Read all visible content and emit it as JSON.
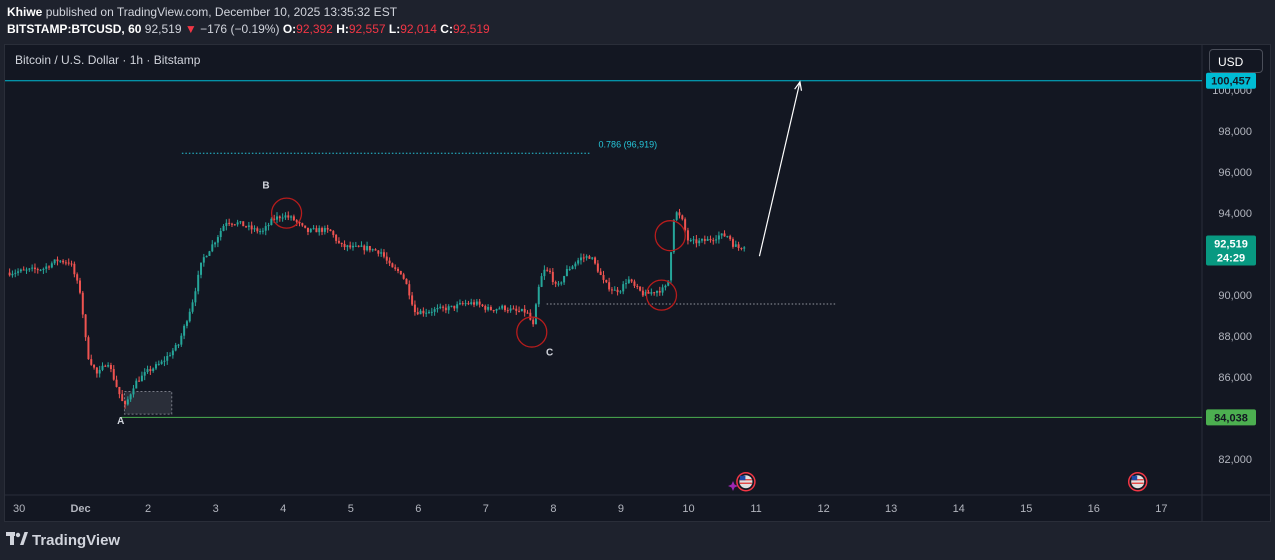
{
  "header": {
    "author": "Khiwe",
    "published_text": "published on TradingView.com, December 10, 2025 13:35:32 EST",
    "symbol": "BITSTAMP:BTCUSD, 60",
    "last": "92,519",
    "change_arrow": "▼",
    "change": "−176 (−0.19%)",
    "o_label": "O:",
    "o_value": "92,392",
    "h_label": "H:",
    "h_value": "92,557",
    "l_label": "L:",
    "l_value": "92,014",
    "c_label": "C:",
    "c_value": "92,519"
  },
  "chart_title": "Bitcoin / U.S. Dollar · 1h · Bitstamp",
  "currency_button": "USD",
  "footer": {
    "brand": "TradingView"
  },
  "colors": {
    "up": "#26a69a",
    "down": "#ef5350",
    "accent": "#00bcd4",
    "support": "#4caf50",
    "circle": "#b71c1c"
  },
  "chart_data": {
    "type": "candlestick",
    "title": "Bitcoin / U.S. Dollar · 1h · Bitstamp",
    "ylim": [
      80400,
      102200
    ],
    "y_ticks": [
      82000,
      84000,
      86000,
      88000,
      90000,
      92000,
      94000,
      96000,
      98000,
      100000
    ],
    "y_tick_labels": [
      "82,000",
      "84,000",
      "86,000",
      "88,000",
      "90,000",
      "92,000",
      "94,000",
      "96,000",
      "98,000",
      "100,000"
    ],
    "x_ticks": [
      {
        "day": 0,
        "label": "30"
      },
      {
        "day": 1,
        "label": "Dec"
      },
      {
        "day": 2,
        "label": "2"
      },
      {
        "day": 3,
        "label": "3"
      },
      {
        "day": 4,
        "label": "4"
      },
      {
        "day": 5,
        "label": "5"
      },
      {
        "day": 6,
        "label": "6"
      },
      {
        "day": 7,
        "label": "7"
      },
      {
        "day": 8,
        "label": "8"
      },
      {
        "day": 9,
        "label": "9"
      },
      {
        "day": 10,
        "label": "10"
      },
      {
        "day": 11,
        "label": "11"
      },
      {
        "day": 12,
        "label": "12"
      },
      {
        "day": 13,
        "label": "13"
      },
      {
        "day": 14,
        "label": "14"
      },
      {
        "day": 15,
        "label": "15"
      },
      {
        "day": 16,
        "label": "16"
      },
      {
        "day": 17,
        "label": "17"
      }
    ],
    "price_path": [
      [
        -0.05,
        91100
      ],
      [
        0.2,
        91200
      ],
      [
        0.45,
        91300
      ],
      [
        0.65,
        91700
      ],
      [
        0.85,
        91600
      ],
      [
        1.0,
        90100
      ],
      [
        1.1,
        87100
      ],
      [
        1.25,
        86100
      ],
      [
        1.4,
        86800
      ],
      [
        1.55,
        85400
      ],
      [
        1.65,
        84500
      ],
      [
        1.8,
        85700
      ],
      [
        2.0,
        86300
      ],
      [
        2.2,
        86700
      ],
      [
        2.45,
        87600
      ],
      [
        2.65,
        89600
      ],
      [
        2.8,
        91700
      ],
      [
        3.0,
        92700
      ],
      [
        3.15,
        93600
      ],
      [
        3.35,
        93500
      ],
      [
        3.55,
        93200
      ],
      [
        3.7,
        93100
      ],
      [
        3.85,
        93700
      ],
      [
        4.0,
        93900
      ],
      [
        4.15,
        93700
      ],
      [
        4.35,
        93100
      ],
      [
        4.55,
        93200
      ],
      [
        4.7,
        93100
      ],
      [
        4.85,
        92400
      ],
      [
        5.05,
        92300
      ],
      [
        5.25,
        92300
      ],
      [
        5.45,
        92100
      ],
      [
        5.6,
        91300
      ],
      [
        5.75,
        91100
      ],
      [
        5.85,
        90300
      ],
      [
        5.95,
        89200
      ],
      [
        6.1,
        89200
      ],
      [
        6.3,
        89300
      ],
      [
        6.5,
        89400
      ],
      [
        6.7,
        89600
      ],
      [
        6.85,
        89600
      ],
      [
        7.05,
        89300
      ],
      [
        7.25,
        89400
      ],
      [
        7.45,
        89200
      ],
      [
        7.6,
        89200
      ],
      [
        7.7,
        88500
      ],
      [
        7.78,
        90300
      ],
      [
        7.85,
        91200
      ],
      [
        7.95,
        91100
      ],
      [
        8.05,
        90300
      ],
      [
        8.2,
        91200
      ],
      [
        8.4,
        91800
      ],
      [
        8.55,
        91900
      ],
      [
        8.65,
        91300
      ],
      [
        8.75,
        90600
      ],
      [
        8.9,
        90200
      ],
      [
        9.0,
        90300
      ],
      [
        9.1,
        90800
      ],
      [
        9.2,
        90400
      ],
      [
        9.35,
        90000
      ],
      [
        9.5,
        90200
      ],
      [
        9.65,
        90300
      ],
      [
        9.72,
        90900
      ],
      [
        9.76,
        93300
      ],
      [
        9.8,
        94100
      ],
      [
        9.9,
        93700
      ],
      [
        10.0,
        92600
      ],
      [
        10.15,
        92600
      ],
      [
        10.3,
        92700
      ],
      [
        10.45,
        92900
      ],
      [
        10.6,
        92900
      ],
      [
        10.65,
        92500
      ],
      [
        10.75,
        92300
      ],
      [
        10.85,
        92500
      ]
    ],
    "current_price": 92519,
    "current_price_label": "92,519",
    "countdown": "24:29",
    "target_price": 100457,
    "target_price_label": "100,457",
    "support_price": 84038,
    "support_price_label": "84,038",
    "fib_level": {
      "label": "0.786 (96,919)",
      "price": 96919,
      "x_start": 2.5,
      "x_end": 8.55
    },
    "neckline": {
      "price": 89570,
      "x_start": 7.9,
      "x_end": 12.2
    },
    "demand_box": {
      "x_start": 1.65,
      "x_end": 2.35,
      "price_top": 85300,
      "price_bottom": 84200
    },
    "projection_arrow": {
      "from": [
        11.05,
        91900
      ],
      "to": [
        11.65,
        100400
      ]
    },
    "wave_labels": [
      {
        "text": "A",
        "day": 1.6,
        "price": 83900
      },
      {
        "text": "B",
        "day": 3.75,
        "price": 95400
      },
      {
        "text": "C",
        "day": 7.95,
        "price": 87250
      }
    ],
    "circles": [
      {
        "day": 4.05,
        "price": 94000
      },
      {
        "day": 7.68,
        "price": 88200
      },
      {
        "day": 9.6,
        "price": 90000
      },
      {
        "day": 9.73,
        "price": 92900
      }
    ],
    "event_markers": [
      {
        "day": 10.85,
        "price": 80900,
        "icon": "us-flag-icon"
      },
      {
        "day": 16.65,
        "price": 80900,
        "icon": "us-flag-icon"
      }
    ]
  }
}
